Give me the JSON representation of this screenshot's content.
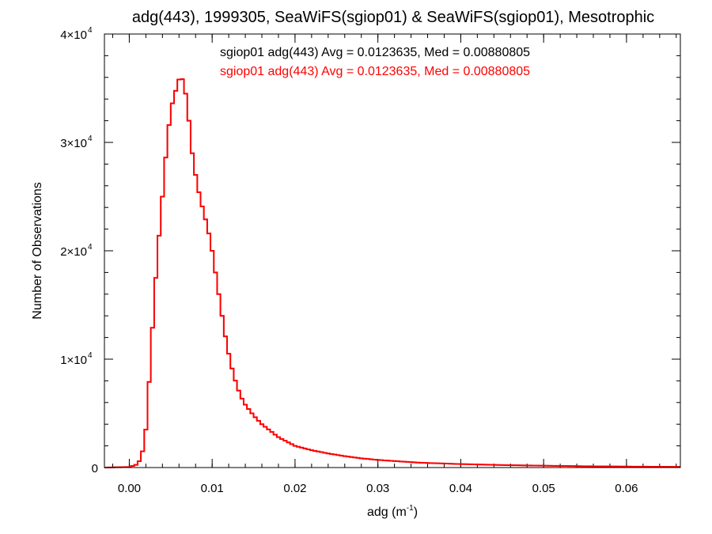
{
  "chart_data": {
    "type": "histogram-step",
    "title": "adg(443), 1999305, SeaWiFS(sgiop01) & SeaWiFS(sgiop01), Mesotrophic",
    "xlabel": "adg (m",
    "xlabel_sup": "-1",
    "xlabel_close": ")",
    "ylabel": "Number of Observations",
    "xlim": [
      -0.003,
      0.0665
    ],
    "ylim": [
      0,
      40000
    ],
    "x_ticks": [
      {
        "value": 0.0,
        "label": "0.00"
      },
      {
        "value": 0.01,
        "label": "0.01"
      },
      {
        "value": 0.02,
        "label": "0.02"
      },
      {
        "value": 0.03,
        "label": "0.03"
      },
      {
        "value": 0.04,
        "label": "0.04"
      },
      {
        "value": 0.05,
        "label": "0.05"
      },
      {
        "value": 0.06,
        "label": "0.06"
      }
    ],
    "y_ticks": [
      {
        "value": 0,
        "base": "0",
        "exp": ""
      },
      {
        "value": 10000,
        "base": "1×10",
        "exp": "4"
      },
      {
        "value": 20000,
        "base": "2×10",
        "exp": "4"
      },
      {
        "value": 30000,
        "base": "3×10",
        "exp": "4"
      },
      {
        "value": 40000,
        "base": "4×10",
        "exp": "4"
      }
    ],
    "x_minor_step": 0.002,
    "y_minor_step": 2000,
    "bin_width": 0.0004,
    "annotations": [
      {
        "text": "sgiop01 adg(443) Avg = 0.0123635, Med = 0.00880805",
        "color": "#000000"
      },
      {
        "text": "sgiop01 adg(443) Avg = 0.0123635, Med = 0.00880805",
        "color": "#ff0000"
      }
    ],
    "series": [
      {
        "color": "#000000",
        "x": [
          -0.003,
          0.0,
          0.001,
          0.0015,
          0.002,
          0.0025,
          0.003,
          0.0035,
          0.004,
          0.0045,
          0.005,
          0.0055,
          0.006,
          0.0063,
          0.0066,
          0.0069,
          0.0072,
          0.0075,
          0.008,
          0.0085,
          0.009,
          0.0095,
          0.01,
          0.0105,
          0.011,
          0.0115,
          0.012,
          0.0125,
          0.013,
          0.0135,
          0.014,
          0.015,
          0.016,
          0.017,
          0.018,
          0.019,
          0.02,
          0.022,
          0.024,
          0.026,
          0.028,
          0.03,
          0.035,
          0.04,
          0.045,
          0.05,
          0.055,
          0.06,
          0.0665
        ],
        "y": [
          0,
          50,
          300,
          1000,
          3500,
          9000,
          15500,
          20500,
          25000,
          29500,
          33000,
          34500,
          35800,
          36000,
          35500,
          34000,
          32000,
          29500,
          27000,
          25000,
          23500,
          22000,
          20000,
          17500,
          15000,
          12500,
          10500,
          8800,
          7500,
          6500,
          5800,
          4800,
          4000,
          3400,
          2800,
          2400,
          2000,
          1600,
          1300,
          1050,
          850,
          700,
          450,
          320,
          230,
          170,
          120,
          90,
          60
        ]
      },
      {
        "color": "#ff0000",
        "x": [
          -0.003,
          0.0,
          0.001,
          0.0015,
          0.002,
          0.0025,
          0.003,
          0.0035,
          0.004,
          0.0045,
          0.005,
          0.0055,
          0.006,
          0.0063,
          0.0066,
          0.0069,
          0.0072,
          0.0075,
          0.008,
          0.0085,
          0.009,
          0.0095,
          0.01,
          0.0105,
          0.011,
          0.0115,
          0.012,
          0.0125,
          0.013,
          0.0135,
          0.014,
          0.015,
          0.016,
          0.017,
          0.018,
          0.019,
          0.02,
          0.022,
          0.024,
          0.026,
          0.028,
          0.03,
          0.035,
          0.04,
          0.045,
          0.05,
          0.055,
          0.06,
          0.0665
        ],
        "y": [
          0,
          50,
          300,
          1000,
          3500,
          9000,
          15500,
          20500,
          25000,
          29500,
          33000,
          34500,
          35800,
          36000,
          35500,
          34000,
          32000,
          29500,
          27000,
          25000,
          23500,
          22000,
          20000,
          17500,
          15000,
          12500,
          10500,
          8800,
          7500,
          6500,
          5800,
          4800,
          4000,
          3400,
          2800,
          2400,
          2000,
          1600,
          1300,
          1050,
          850,
          700,
          450,
          320,
          230,
          170,
          120,
          90,
          60
        ]
      }
    ]
  }
}
